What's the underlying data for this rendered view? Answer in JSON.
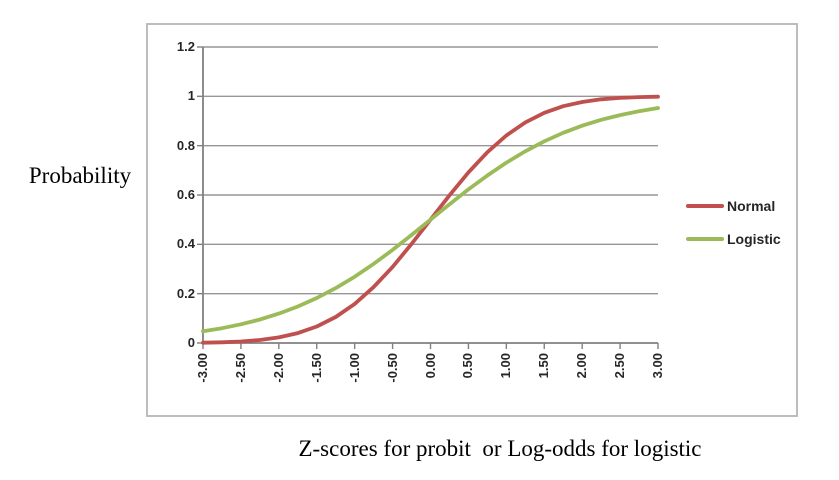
{
  "chart_data": {
    "type": "line",
    "title": "",
    "xlabel": "Z-scores for probit  or Log-odds for logistic",
    "ylabel": "Probability",
    "xlim": [
      -3,
      3
    ],
    "ylim": [
      0,
      1.2
    ],
    "grid": "horizontal",
    "legend_position": "right",
    "x": [
      -3.0,
      -2.75,
      -2.5,
      -2.25,
      -2.0,
      -1.75,
      -1.5,
      -1.25,
      -1.0,
      -0.75,
      -0.5,
      -0.25,
      0.0,
      0.25,
      0.5,
      0.75,
      1.0,
      1.25,
      1.5,
      1.75,
      2.0,
      2.25,
      2.5,
      2.75,
      3.0
    ],
    "series": [
      {
        "name": "Normal",
        "color": "#C0504D",
        "values": [
          0.0013,
          0.003,
          0.0062,
          0.0122,
          0.0228,
          0.0401,
          0.0668,
          0.1056,
          0.1587,
          0.2266,
          0.3085,
          0.4013,
          0.5,
          0.5987,
          0.6915,
          0.7734,
          0.8413,
          0.8944,
          0.9332,
          0.9599,
          0.9772,
          0.9878,
          0.9938,
          0.997,
          0.9987
        ]
      },
      {
        "name": "Logistic",
        "color": "#9BBB59",
        "values": [
          0.0474,
          0.0601,
          0.0759,
          0.0953,
          0.1192,
          0.148,
          0.1824,
          0.2227,
          0.2689,
          0.3208,
          0.3775,
          0.4378,
          0.5,
          0.5622,
          0.6225,
          0.6792,
          0.7311,
          0.7773,
          0.8176,
          0.852,
          0.8808,
          0.9047,
          0.9241,
          0.9399,
          0.9526
        ]
      }
    ],
    "x_ticks": [
      {
        "v": -3.0,
        "label": "-3.00"
      },
      {
        "v": -2.5,
        "label": "-2.50"
      },
      {
        "v": -2.0,
        "label": "-2.00"
      },
      {
        "v": -1.5,
        "label": "-1.50"
      },
      {
        "v": -1.0,
        "label": "-1.00"
      },
      {
        "v": -0.5,
        "label": "-0.50"
      },
      {
        "v": 0.0,
        "label": "0.00"
      },
      {
        "v": 0.5,
        "label": "0.50"
      },
      {
        "v": 1.0,
        "label": "1.00"
      },
      {
        "v": 1.5,
        "label": "1.50"
      },
      {
        "v": 2.0,
        "label": "2.00"
      },
      {
        "v": 2.5,
        "label": "2.50"
      },
      {
        "v": 3.0,
        "label": "3.00"
      }
    ],
    "y_ticks": [
      {
        "v": 0.0,
        "label": "0"
      },
      {
        "v": 0.2,
        "label": "0.2"
      },
      {
        "v": 0.4,
        "label": "0.4"
      },
      {
        "v": 0.6,
        "label": "0.6"
      },
      {
        "v": 0.8,
        "label": "0.8"
      },
      {
        "v": 1.0,
        "label": "1"
      },
      {
        "v": 1.2,
        "label": "1.2"
      }
    ]
  },
  "colors": {
    "grid": "#969696",
    "axis": "#808080",
    "frame": "#BDBDBD",
    "tick_text": "#262626",
    "title_text": "#000000",
    "background": "#FFFFFF"
  }
}
